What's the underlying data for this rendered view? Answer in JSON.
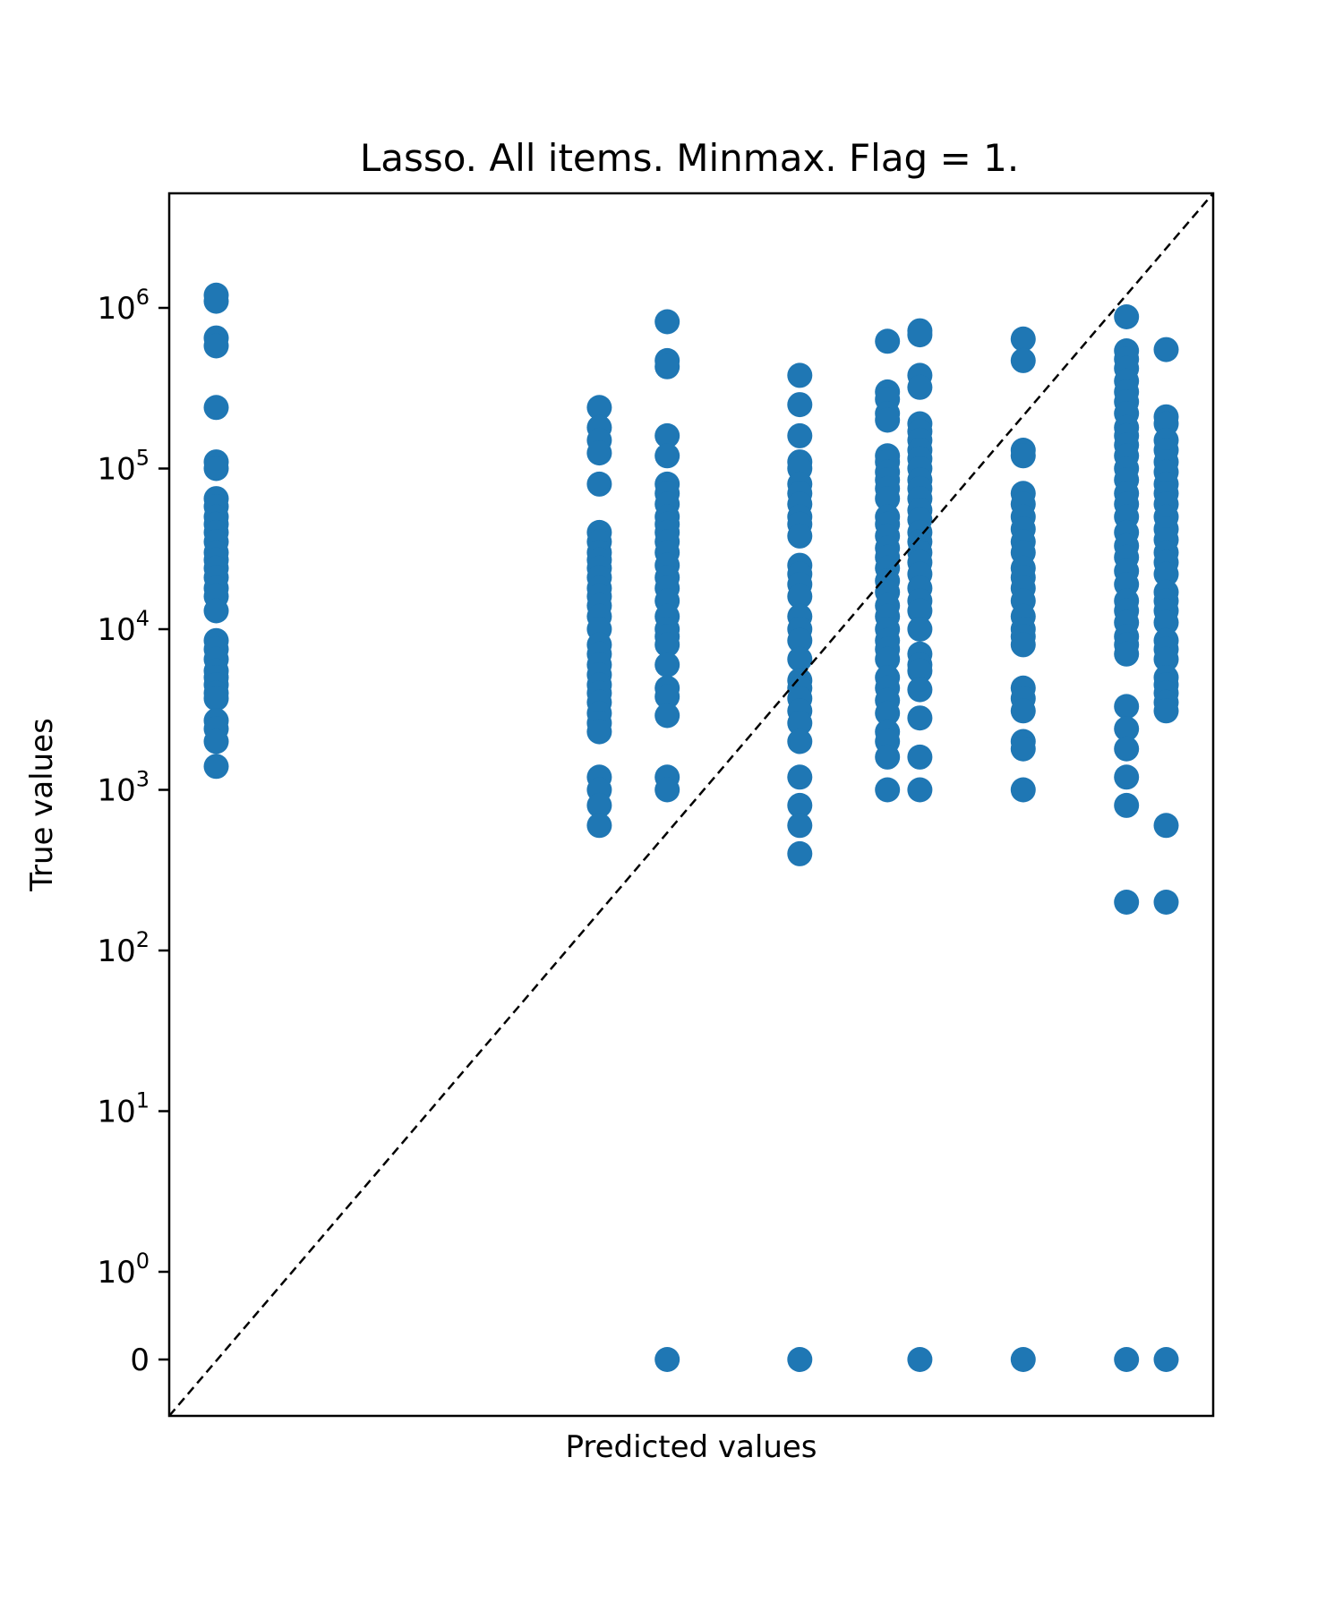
{
  "chart_data": {
    "type": "scatter",
    "title": "Lasso. All items. Minmax. Flag = 1.",
    "xlabel": "Predicted values",
    "ylabel": "True values",
    "yscale": "symlog",
    "ylim": [
      -0.6,
      2500000
    ],
    "x_ticks_shown": false,
    "grid": false,
    "legend": "none",
    "marker_color": "#1f77b4",
    "reference_line": {
      "style": "dashed",
      "color": "#000000",
      "description": "y = x"
    },
    "y_ticks": [
      {
        "value": 0,
        "base": "0",
        "exp": ""
      },
      {
        "value": 1,
        "base": "10",
        "exp": "0"
      },
      {
        "value": 10,
        "base": "10",
        "exp": "1"
      },
      {
        "value": 100,
        "base": "10",
        "exp": "2"
      },
      {
        "value": 1000,
        "base": "10",
        "exp": "3"
      },
      {
        "value": 10000,
        "base": "10",
        "exp": "4"
      },
      {
        "value": 100000,
        "base": "10",
        "exp": "5"
      },
      {
        "value": 1000000,
        "base": "10",
        "exp": "6"
      }
    ],
    "groups": [
      {
        "x_rel": 0.045,
        "y": [
          1200000,
          1100000,
          650000,
          580000,
          240000,
          110000,
          100000,
          65000,
          58000,
          50000,
          45000,
          40000,
          35000,
          30000,
          27000,
          24000,
          21000,
          18000,
          16000,
          13000,
          8500,
          7500,
          6500,
          5500,
          5000,
          4500,
          4000,
          3700,
          2700,
          2400,
          2000,
          1400
        ]
      },
      {
        "x_rel": 0.412,
        "y": [
          240000,
          180000,
          150000,
          125000,
          80000,
          40000,
          35000,
          30000,
          27000,
          24000,
          21000,
          18000,
          16000,
          14000,
          12000,
          10000,
          8000,
          7000,
          6000,
          5200,
          4500,
          4000,
          3500,
          3000,
          2600,
          2300,
          1200,
          1000,
          800,
          600
        ]
      },
      {
        "x_rel": 0.477,
        "y": [
          820000,
          470000,
          430000,
          160000,
          120000,
          80000,
          70000,
          60000,
          50000,
          45000,
          40000,
          35000,
          30000,
          25000,
          21000,
          18000,
          15000,
          12000,
          10000,
          9000,
          8000,
          6000,
          4300,
          3800,
          2900,
          1200,
          1000,
          0
        ]
      },
      {
        "x_rel": 0.604,
        "y": [
          380000,
          250000,
          160000,
          110000,
          100000,
          80000,
          70000,
          60000,
          50000,
          45000,
          38000,
          25000,
          22000,
          19000,
          16000,
          12000,
          10000,
          8500,
          6500,
          4800,
          4300,
          3700,
          3100,
          2600,
          2000,
          1200,
          800,
          600,
          400,
          0
        ]
      },
      {
        "x_rel": 0.688,
        "y": [
          620000,
          300000,
          270000,
          220000,
          200000,
          120000,
          110000,
          95000,
          85000,
          75000,
          65000,
          50000,
          45000,
          38000,
          32000,
          28000,
          24000,
          20000,
          17000,
          14000,
          12000,
          10000,
          8500,
          7500,
          6500,
          5000,
          4300,
          3600,
          3000,
          2300,
          2000,
          1600,
          1000
        ]
      },
      {
        "x_rel": 0.719,
        "y": [
          720000,
          680000,
          380000,
          320000,
          190000,
          170000,
          150000,
          130000,
          115000,
          100000,
          85000,
          75000,
          65000,
          55000,
          48000,
          40000,
          35000,
          30000,
          26000,
          22000,
          18000,
          15000,
          13000,
          10000,
          7000,
          6000,
          5500,
          4200,
          2800,
          1600,
          1000,
          0
        ]
      },
      {
        "x_rel": 0.818,
        "y": [
          640000,
          470000,
          130000,
          120000,
          70000,
          60000,
          50000,
          42000,
          35000,
          30000,
          24000,
          21000,
          18000,
          15000,
          12000,
          10000,
          9000,
          8000,
          4300,
          3700,
          3100,
          2000,
          1800,
          1000,
          0
        ]
      },
      {
        "x_rel": 0.917,
        "y": [
          880000,
          540000,
          480000,
          420000,
          350000,
          300000,
          260000,
          220000,
          180000,
          160000,
          140000,
          120000,
          100000,
          85000,
          70000,
          60000,
          50000,
          40000,
          33000,
          28000,
          23000,
          19000,
          15000,
          13000,
          11000,
          9000,
          8000,
          7000,
          3300,
          2400,
          1800,
          1200,
          800,
          200,
          0
        ]
      },
      {
        "x_rel": 0.955,
        "y": [
          550000,
          210000,
          190000,
          150000,
          130000,
          110000,
          95000,
          80000,
          70000,
          60000,
          50000,
          42000,
          36000,
          30000,
          26000,
          22000,
          17000,
          15000,
          13000,
          11000,
          8500,
          7500,
          6500,
          5000,
          4500,
          4000,
          3500,
          3100,
          600,
          200,
          0
        ]
      }
    ]
  }
}
